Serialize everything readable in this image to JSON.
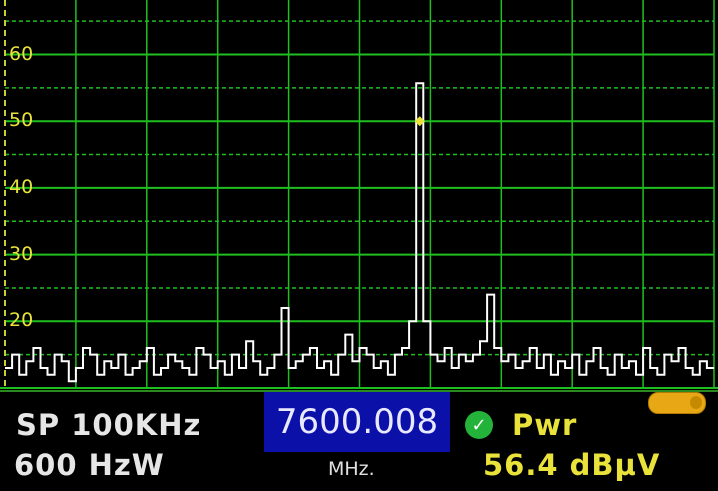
{
  "chart_data": {
    "type": "line",
    "title": "",
    "xlabel": "",
    "ylabel": "",
    "ylim": [
      10,
      70
    ],
    "yticks": [
      "20",
      "30",
      "40",
      "50",
      "60",
      "70"
    ],
    "x_center_mhz": 7600.008,
    "x_span_khz": 100,
    "grid": true,
    "colors": {
      "trace": "#ffffff",
      "grid": "#1fbf1f",
      "tick_labels": "#e8e23a",
      "marker": "#e8e23a"
    },
    "series": [
      {
        "values": [
          13,
          15,
          12,
          14,
          16,
          13,
          12,
          15,
          14,
          11,
          13,
          16,
          15,
          12,
          14,
          13,
          15,
          12,
          13,
          14,
          16,
          12,
          13,
          15,
          14,
          13,
          12,
          16,
          15,
          13,
          14,
          12,
          15,
          13,
          17,
          14,
          12,
          13,
          15,
          22,
          13,
          14,
          15,
          16,
          13,
          14,
          12,
          15,
          18,
          14,
          16,
          15,
          13,
          14,
          12,
          15,
          16,
          20,
          55.7,
          20,
          15,
          14,
          16,
          13,
          15,
          14,
          15,
          17,
          24,
          16,
          14,
          15,
          13,
          14,
          16,
          13,
          15,
          12,
          14,
          13,
          15,
          12,
          14,
          16,
          13,
          12,
          15,
          13,
          14,
          12,
          16,
          13,
          12,
          15,
          14,
          16,
          13,
          12,
          14,
          13
        ]
      }
    ],
    "marker": {
      "value_dbuv": 50
    }
  },
  "footer": {
    "span": "SP 100KHz",
    "rbw": "600 HzW",
    "frequency": "7600.008",
    "frequency_unit": "MHz.",
    "status_icon": "check-circle-icon",
    "measure_label": "Pwr",
    "measure_value": "56.4 dBµV",
    "battery_icon": "battery-icon"
  }
}
